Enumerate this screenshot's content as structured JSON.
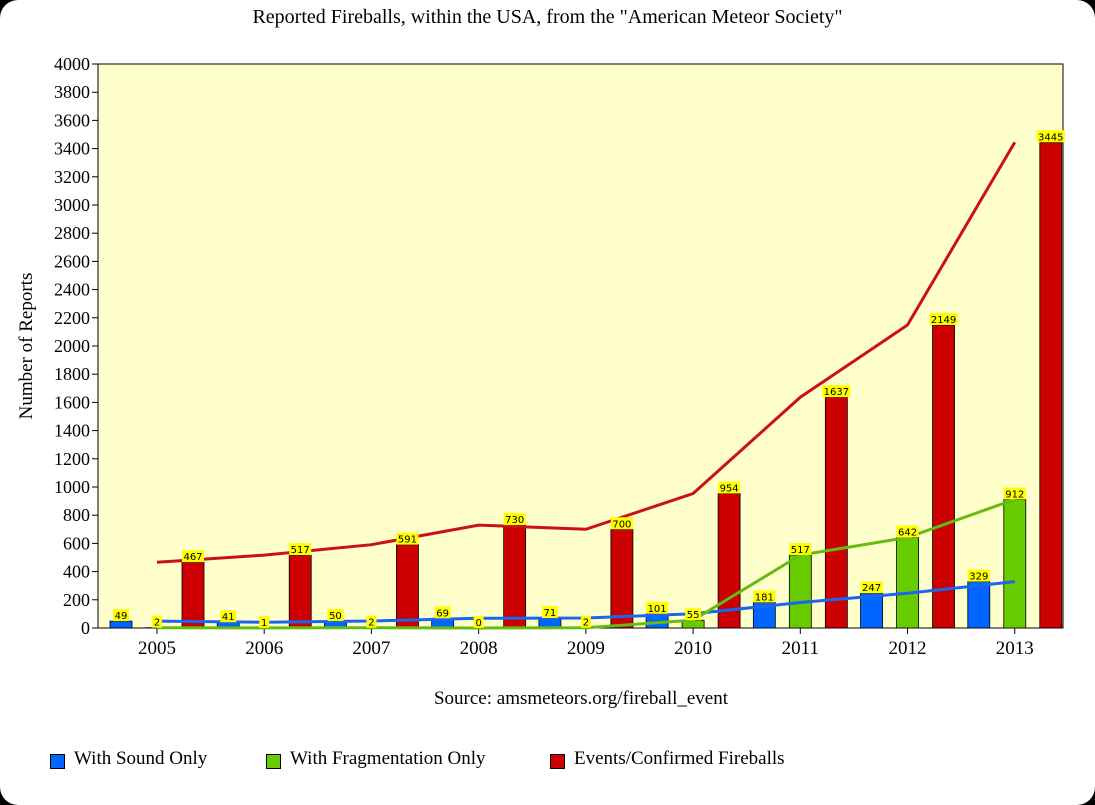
{
  "chart_data": {
    "type": "bar",
    "title": "Reported Fireballs, within the USA, from the \"American Meteor Society\"",
    "ylabel": "Number of Reports",
    "xlabel": "",
    "source": "Source: amsmeteors.org/fireball_event",
    "categories": [
      "2005",
      "2006",
      "2007",
      "2008",
      "2009",
      "2010",
      "2011",
      "2012",
      "2013"
    ],
    "ylim": [
      0,
      4000
    ],
    "yticks": [
      0,
      200,
      400,
      600,
      800,
      1000,
      1200,
      1400,
      1600,
      1800,
      2000,
      2200,
      2400,
      2600,
      2800,
      3000,
      3200,
      3400,
      3600,
      3800,
      4000
    ],
    "series": [
      {
        "name": "With Sound Only",
        "color": "#0066ff",
        "values": [
          49,
          41,
          50,
          69,
          71,
          101,
          181,
          247,
          329
        ]
      },
      {
        "name": "With Fragmentation Only",
        "color": "#66cc00",
        "values": [
          2,
          1,
          2,
          0,
          2,
          55,
          517,
          642,
          912
        ]
      },
      {
        "name": "Events/Confirmed Fireballs",
        "color": "#cc0000",
        "values": [
          467,
          517,
          591,
          730,
          700,
          954,
          1637,
          2149,
          3445
        ]
      }
    ],
    "trend_lines": true,
    "plot_background": "#ffffcc",
    "label_background": "#ffff00",
    "legend_position": "bottom",
    "grid": false
  }
}
